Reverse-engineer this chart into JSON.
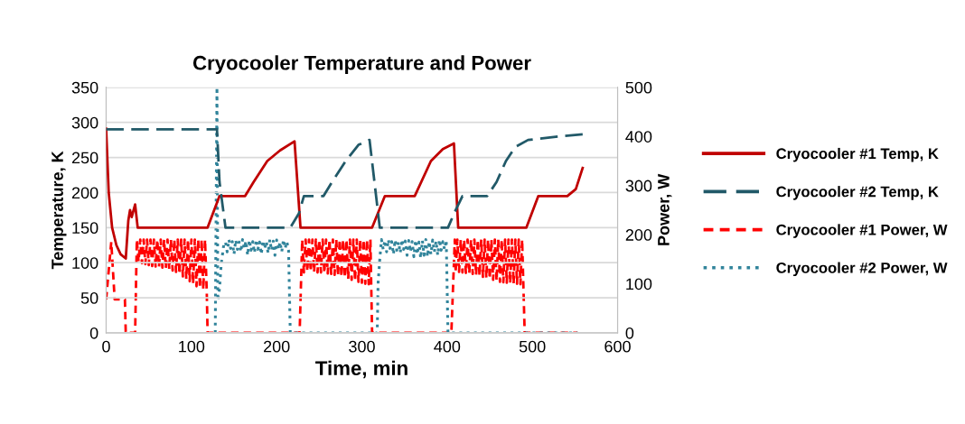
{
  "chart_data": {
    "type": "line",
    "title": "Cryocooler Temperature and Power",
    "xlabel": "Time, min",
    "ylabel": "Temperature, K",
    "y2label": "Power, W",
    "xlim": [
      0,
      600
    ],
    "xticks": [
      0,
      100,
      200,
      300,
      400,
      500,
      600
    ],
    "ylim": [
      0,
      350
    ],
    "yticks": [
      0,
      50,
      100,
      150,
      200,
      250,
      300,
      350
    ],
    "y2lim": [
      0,
      500
    ],
    "y2ticks": [
      0,
      100,
      200,
      300,
      400,
      500
    ],
    "grid": "y",
    "legend": "right",
    "marker": "none",
    "series": [
      {
        "name": "Cryocooler #1 Temp, K",
        "color": "#c00000",
        "line_style": "solid",
        "x": [
          0,
          3,
          7,
          12,
          17,
          23,
          26,
          28,
          30,
          34,
          37,
          119,
          133,
          163,
          173,
          189,
          204,
          221,
          228,
          312,
          327,
          362,
          381,
          395,
          408,
          413,
          493,
          507,
          541,
          551,
          559
        ],
        "values": [
          291,
          200,
          150,
          125,
          112,
          106,
          160,
          175,
          165,
          183,
          150,
          150,
          195,
          195,
          215,
          245,
          260,
          273,
          150,
          150,
          195,
          195,
          245,
          262,
          270,
          150,
          150,
          195,
          195,
          205,
          235
        ]
      },
      {
        "name": "Cryocooler #2 Temp, K",
        "color": "#215968",
        "line_style": "dashed",
        "x": [
          0,
          130,
          133,
          140,
          216,
          226,
          232,
          255,
          265,
          281,
          296,
          309,
          321,
          401,
          410,
          418,
          447,
          458,
          469,
          480,
          495,
          531,
          559
        ],
        "values": [
          290,
          290,
          215,
          150,
          150,
          170,
          195,
          195,
          215,
          245,
          268,
          275,
          150,
          150,
          175,
          195,
          195,
          215,
          245,
          265,
          275,
          280,
          283
        ]
      },
      {
        "name": "Cryocooler #1 Power, W",
        "color": "#ff0000",
        "line_style": "dashed",
        "axis": "y2",
        "x": [
          0,
          6,
          10,
          22,
          23,
          34,
          36,
          38,
          40,
          42,
          44,
          46,
          48,
          50,
          52,
          54,
          56,
          58,
          60,
          62,
          64,
          66,
          68,
          70,
          72,
          74,
          76,
          78,
          80,
          82,
          84,
          86,
          88,
          90,
          92,
          94,
          96,
          98,
          100,
          102,
          104,
          106,
          108,
          110,
          112,
          114,
          116,
          118,
          119,
          227,
          230,
          232,
          234,
          236,
          238,
          240,
          242,
          244,
          246,
          248,
          250,
          252,
          254,
          256,
          258,
          260,
          262,
          264,
          266,
          268,
          270,
          272,
          274,
          276,
          278,
          280,
          282,
          284,
          286,
          288,
          290,
          292,
          294,
          296,
          298,
          300,
          302,
          304,
          306,
          308,
          310,
          312,
          405,
          409,
          410,
          412,
          414,
          416,
          418,
          420,
          422,
          424,
          426,
          428,
          430,
          432,
          434,
          436,
          438,
          440,
          442,
          444,
          446,
          448,
          450,
          452,
          454,
          456,
          458,
          460,
          462,
          464,
          466,
          468,
          470,
          472,
          474,
          476,
          478,
          480,
          482,
          484,
          486,
          488,
          491,
          553
        ],
        "values": [
          68,
          185,
          68,
          68,
          0,
          0,
          190,
          145,
          190,
          142,
          190,
          140,
          190,
          138,
          190,
          136,
          190,
          135,
          190,
          134,
          190,
          133,
          190,
          131,
          190,
          130,
          190,
          127,
          190,
          124,
          190,
          120,
          190,
          115,
          190,
          110,
          190,
          105,
          190,
          100,
          190,
          95,
          190,
          91,
          190,
          88,
          190,
          86,
          0,
          0,
          190,
          123,
          190,
          125,
          190,
          125,
          190,
          124,
          190,
          123,
          190,
          123,
          190,
          122,
          190,
          121,
          190,
          120,
          190,
          118,
          190,
          116,
          190,
          114,
          190,
          112,
          190,
          110,
          190,
          108,
          190,
          106,
          190,
          104,
          190,
          102,
          190,
          100,
          190,
          99,
          190,
          0,
          0,
          190,
          123,
          190,
          124,
          190,
          123,
          190,
          122,
          190,
          121,
          190,
          120,
          190,
          118,
          190,
          116,
          190,
          114,
          190,
          112,
          190,
          110,
          190,
          108,
          190,
          106,
          190,
          104,
          190,
          103,
          190,
          102,
          190,
          101,
          190,
          100,
          190,
          100,
          190,
          99,
          190,
          0,
          0
        ]
      },
      {
        "name": "Cryocooler #2 Power, W",
        "color": "#31849b",
        "line_style": "dotted",
        "axis": "y2",
        "x": [
          128,
          130,
          131,
          133,
          135,
          138,
          140,
          142,
          144,
          146,
          148,
          150,
          152,
          154,
          156,
          158,
          160,
          162,
          164,
          166,
          168,
          170,
          172,
          174,
          176,
          178,
          180,
          182,
          184,
          186,
          188,
          190,
          192,
          194,
          196,
          198,
          200,
          202,
          204,
          206,
          208,
          210,
          212,
          214,
          216,
          318,
          319,
          321,
          323,
          325,
          327,
          329,
          331,
          333,
          335,
          337,
          339,
          341,
          343,
          345,
          347,
          349,
          351,
          353,
          355,
          357,
          359,
          361,
          363,
          365,
          367,
          369,
          371,
          373,
          375,
          377,
          379,
          381,
          383,
          385,
          387,
          389,
          391,
          393,
          395,
          397,
          399,
          401,
          553
        ],
        "values": [
          0,
          500,
          66,
          90,
          140,
          180,
          185,
          165,
          190,
          172,
          186,
          160,
          189,
          170,
          185,
          165,
          190,
          172,
          187,
          158,
          189,
          168,
          186,
          163,
          190,
          170,
          185,
          160,
          188,
          171,
          186,
          162,
          190,
          168,
          187,
          158,
          189,
          170,
          185,
          165,
          190,
          172,
          186,
          168,
          0,
          0,
          100,
          150,
          190,
          170,
          188,
          165,
          190,
          172,
          186,
          160,
          189,
          168,
          185,
          163,
          190,
          170,
          187,
          158,
          188,
          165,
          186,
          155,
          189,
          160,
          185,
          152,
          188,
          158,
          190,
          155,
          186,
          160,
          189,
          165,
          187,
          158,
          190,
          168,
          186,
          170,
          189,
          0,
          0
        ]
      }
    ]
  }
}
